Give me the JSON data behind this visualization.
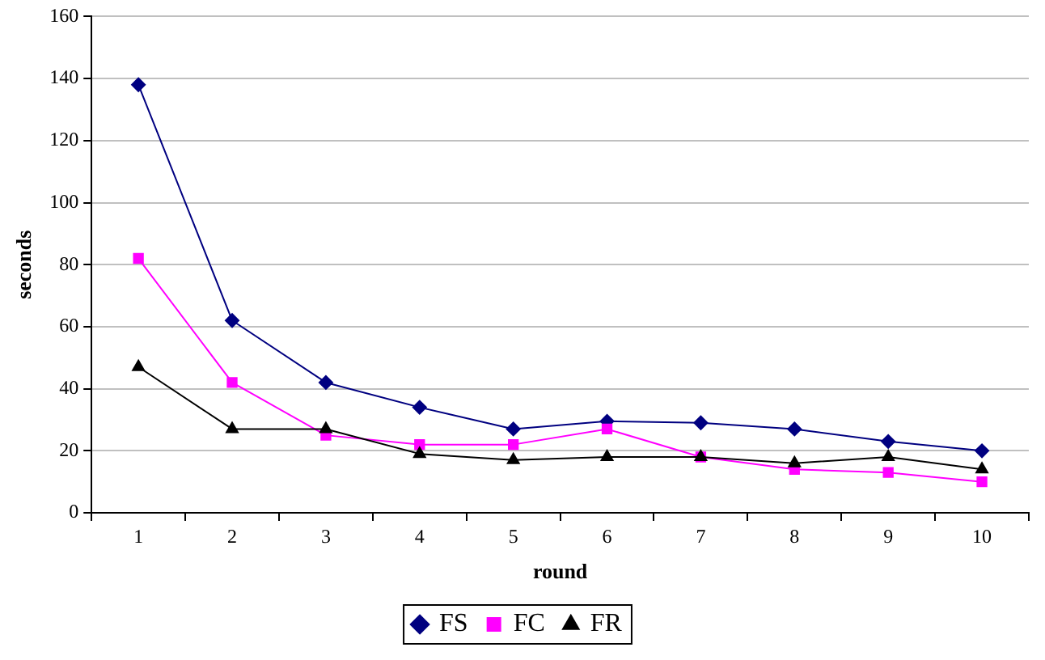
{
  "chart_data": {
    "type": "line",
    "xlabel": "round",
    "ylabel": "seconds",
    "categories": [
      "1",
      "2",
      "3",
      "4",
      "5",
      "6",
      "7",
      "8",
      "9",
      "10"
    ],
    "series": [
      {
        "name": "FS",
        "color": "#000080",
        "marker": "diamond",
        "values": [
          138,
          62,
          42,
          34,
          27,
          29.5,
          29,
          27,
          23,
          20
        ]
      },
      {
        "name": "FC",
        "color": "#ff00ff",
        "marker": "square",
        "values": [
          82,
          42,
          25,
          22,
          22,
          27,
          18,
          14,
          13,
          10
        ]
      },
      {
        "name": "FR",
        "color": "#000000",
        "marker": "triangle",
        "values": [
          47,
          27,
          27,
          19,
          17,
          18,
          18,
          16,
          18,
          14
        ]
      }
    ],
    "ylim": [
      0,
      160
    ],
    "yticks": [
      0,
      20,
      40,
      60,
      80,
      100,
      120,
      140,
      160
    ],
    "grid": "y",
    "legend": "bottom",
    "line_style": "solid"
  }
}
